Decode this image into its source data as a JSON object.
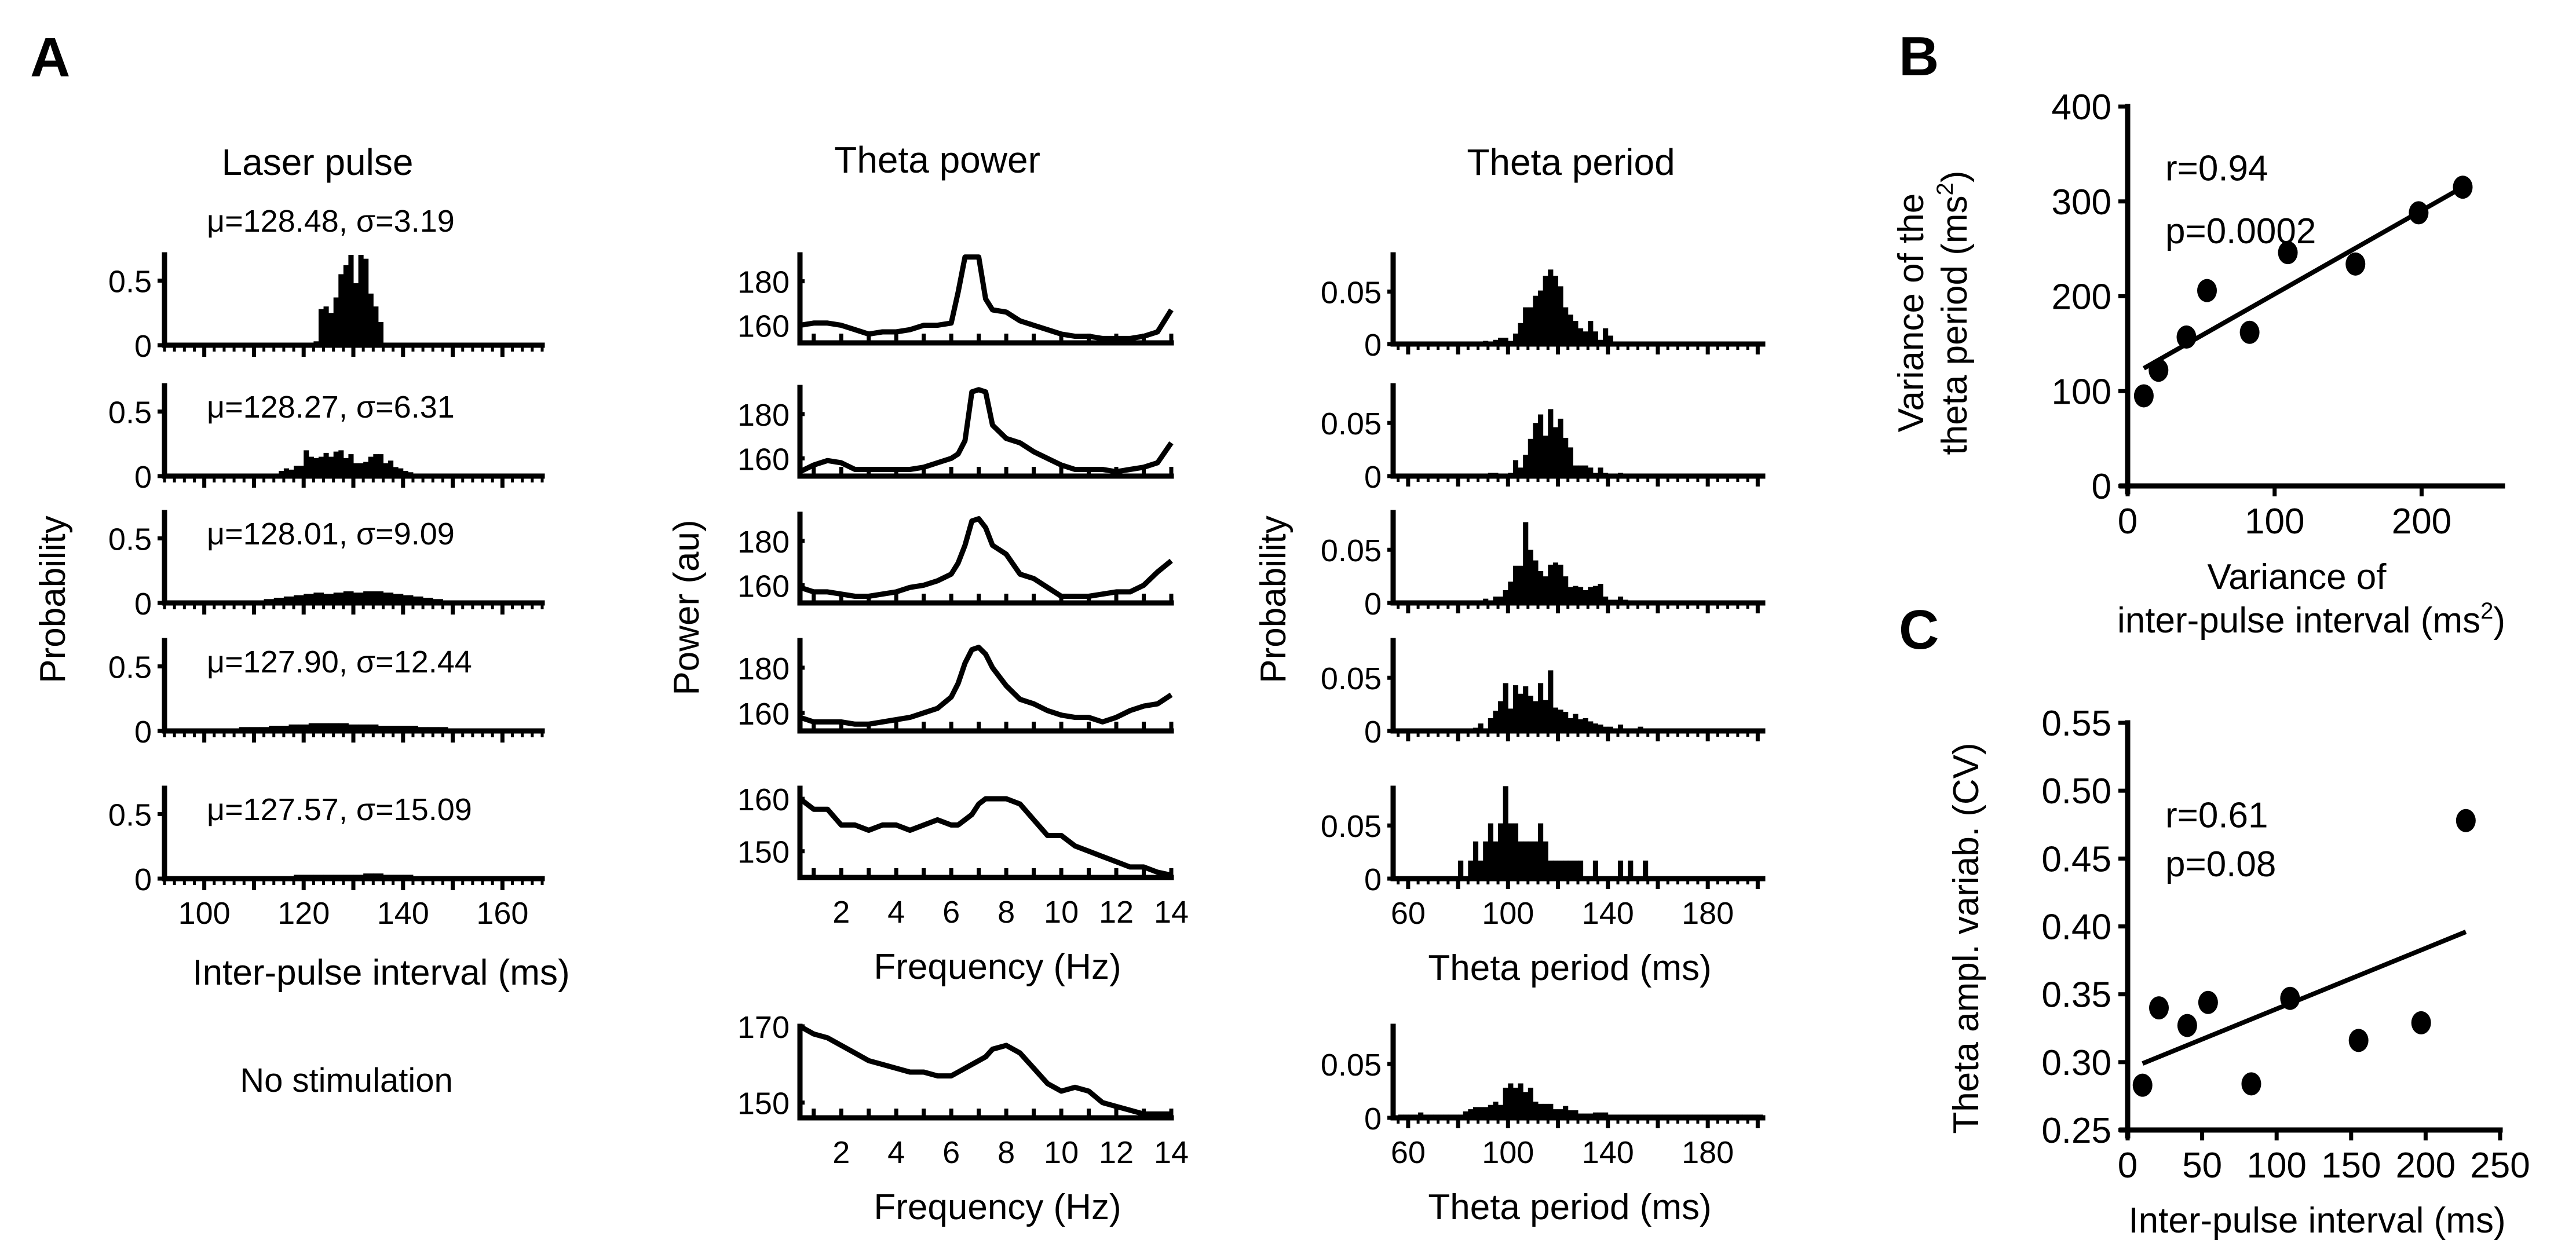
{
  "panel_letters": {
    "a": "A",
    "b": "B",
    "c": "C"
  },
  "column_titles": {
    "laser": "Laser pulse",
    "power": "Theta power",
    "period": "Theta period"
  },
  "no_stim_label": "No stimulation",
  "chart_data": [
    {
      "id": "laser_pulse",
      "type": "bar",
      "title": "Laser pulse",
      "xlabel": "Inter-pulse interval (ms)",
      "ylabel": "Probability",
      "xlim": [
        92,
        168
      ],
      "ylim": [
        0,
        0.7
      ],
      "xticks": [
        100,
        120,
        140,
        160
      ],
      "yticks": [
        0,
        0.5
      ],
      "ytick_labels": [
        "0",
        "0.5"
      ],
      "panels": [
        {
          "annotation": "μ=128.48, σ=3.19",
          "bin_start": 122,
          "bin_width": 1,
          "values": [
            0.03,
            0.28,
            0.3,
            0.25,
            0.37,
            0.55,
            0.62,
            0.7,
            0.48,
            0.7,
            0.67,
            0.4,
            0.3,
            0.18,
            0.02
          ]
        },
        {
          "annotation": "μ=128.27, σ=6.31",
          "bin_start": 113,
          "bin_width": 1,
          "values": [
            0.01,
            0.02,
            0.04,
            0.06,
            0.05,
            0.08,
            0.08,
            0.2,
            0.15,
            0.14,
            0.15,
            0.18,
            0.15,
            0.19,
            0.2,
            0.14,
            0.17,
            0.1,
            0.1,
            0.11,
            0.15,
            0.17,
            0.17,
            0.1,
            0.12,
            0.07,
            0.06,
            0.04,
            0.03
          ]
        },
        {
          "annotation": "μ=128.01, σ=9.09",
          "bin_start": 110,
          "bin_width": 2,
          "values": [
            0.02,
            0.03,
            0.04,
            0.05,
            0.06,
            0.07,
            0.08,
            0.07,
            0.08,
            0.09,
            0.08,
            0.09,
            0.09,
            0.08,
            0.07,
            0.06,
            0.05,
            0.04,
            0.03,
            0.02
          ]
        },
        {
          "annotation": "μ=127.90, σ=12.44",
          "bin_start": 103,
          "bin_width": 2,
          "values": [
            0.02,
            0.02,
            0.03,
            0.03,
            0.03,
            0.04,
            0.04,
            0.05,
            0.05,
            0.06,
            0.06,
            0.06,
            0.06,
            0.05,
            0.05,
            0.05,
            0.04,
            0.04,
            0.04,
            0.04,
            0.03,
            0.03,
            0.03,
            0.02,
            0.02,
            0.02
          ]
        },
        {
          "annotation": "μ=127.57, σ=15.09",
          "bin_start": 98,
          "bin_width": 2,
          "values": [
            0.02,
            0.01,
            0.01,
            0.01,
            0.01,
            0.02,
            0.02,
            0.02,
            0.02,
            0.02,
            0.03,
            0.03,
            0.03,
            0.03,
            0.03,
            0.03,
            0.03,
            0.04,
            0.04,
            0.03,
            0.03,
            0.03,
            0.02,
            0.02,
            0.02,
            0.02,
            0.02,
            0.01,
            0.01,
            0.01,
            0.01,
            0.01
          ]
        }
      ]
    },
    {
      "id": "theta_power",
      "type": "line",
      "title": "Theta power",
      "xlabel": "Frequency (Hz)",
      "ylabel": "Power (au)",
      "xlim": [
        0.5,
        14
      ],
      "xticks": [
        2,
        4,
        6,
        8,
        10,
        12,
        14
      ],
      "x": [
        0.5,
        1,
        1.5,
        2,
        2.5,
        3,
        3.5,
        4,
        4.5,
        5,
        5.5,
        6,
        6.25,
        6.5,
        6.75,
        7,
        7.25,
        7.5,
        8,
        8.5,
        9,
        9.5,
        10,
        10.5,
        11,
        11.5,
        12,
        12.5,
        13,
        13.5,
        14
      ],
      "panels": [
        {
          "ylim": [
            152,
            192
          ],
          "yticks": [
            160,
            180
          ],
          "values": [
            160,
            161,
            161,
            160,
            158,
            156,
            157,
            157,
            158,
            160,
            160,
            161,
            175,
            191,
            191,
            191,
            172,
            167,
            166,
            162,
            160,
            158,
            156,
            155,
            155,
            154,
            154,
            154,
            155,
            157,
            167
          ]
        },
        {
          "ylim": [
            152,
            192
          ],
          "yticks": [
            160,
            180
          ],
          "values": [
            154,
            157,
            159,
            158,
            155,
            155,
            155,
            155,
            155,
            156,
            158,
            160,
            162,
            168,
            190,
            191,
            190,
            175,
            169,
            167,
            163,
            160,
            157,
            155,
            155,
            155,
            154,
            155,
            156,
            158,
            167
          ]
        },
        {
          "ylim": [
            152,
            192
          ],
          "yticks": [
            160,
            180
          ],
          "values": [
            159,
            157,
            157,
            156,
            155,
            155,
            156,
            157,
            159,
            160,
            162,
            165,
            170,
            178,
            189,
            190,
            186,
            178,
            174,
            165,
            163,
            159,
            155,
            155,
            155,
            156,
            157,
            157,
            160,
            166,
            171
          ]
        },
        {
          "ylim": [
            152,
            192
          ],
          "yticks": [
            160,
            180
          ],
          "values": [
            158,
            156,
            156,
            156,
            155,
            155,
            156,
            157,
            158,
            160,
            162,
            167,
            173,
            182,
            188,
            189,
            186,
            180,
            172,
            166,
            164,
            161,
            159,
            158,
            158,
            156,
            158,
            161,
            163,
            164,
            168
          ]
        },
        {
          "ylim": [
            145,
            162
          ],
          "yticks": [
            150,
            160
          ],
          "values": [
            160,
            158,
            158,
            155,
            155,
            154,
            155,
            155,
            154,
            155,
            156,
            155,
            155,
            156,
            157,
            159,
            160,
            160,
            160,
            159,
            156,
            153,
            153,
            151,
            150,
            149,
            148,
            147,
            147,
            146,
            145
          ]
        },
        {
          "ylim": [
            146,
            170
          ],
          "yticks": [
            150,
            170
          ],
          "values": [
            170,
            168,
            167,
            165,
            163,
            161,
            160,
            159,
            158,
            158,
            157,
            157,
            158,
            159,
            160,
            161,
            162,
            164,
            165,
            163,
            159,
            155,
            153,
            154,
            153,
            150,
            149,
            148,
            147,
            147,
            147
          ]
        }
      ]
    },
    {
      "id": "theta_period",
      "type": "bar",
      "title": "Theta period",
      "xlabel": "Theta period (ms)",
      "ylabel": "Probability",
      "xlim": [
        54,
        202
      ],
      "ylim": [
        0,
        0.085
      ],
      "xticks": [
        60,
        100,
        140,
        180
      ],
      "yticks": [
        0,
        0.05
      ],
      "ytick_labels": [
        "0",
        "0.05"
      ],
      "panels": [
        {
          "bin_start": 90,
          "bin_width": 2,
          "values": [
            0.003,
            0,
            0.004,
            0.006,
            0.006,
            0.003,
            0.01,
            0.02,
            0.035,
            0.035,
            0.046,
            0.051,
            0.065,
            0.071,
            0.065,
            0.055,
            0.035,
            0.028,
            0.022,
            0.015,
            0.012,
            0.022,
            0.012,
            0.004,
            0.015,
            0.008,
            0,
            0.002,
            0.002,
            0.002,
            0.002,
            0.002,
            0,
            0.002,
            0.002
          ]
        },
        {
          "bin_start": 66,
          "bin_width": 2,
          "values": [
            0.002,
            0,
            0,
            0,
            0.002,
            0.002,
            0,
            0,
            0,
            0,
            0,
            0.002,
            0,
            0.003,
            0.003,
            0.002,
            0.002,
            0.003,
            0.015,
            0.008,
            0.02,
            0.035,
            0.05,
            0.058,
            0.038,
            0.063,
            0.046,
            0.054,
            0.036,
            0.027,
            0.01,
            0.01,
            0.01,
            0.008,
            0.003,
            0.008,
            0.003,
            0.002,
            0.002,
            0.003,
            0.002,
            0.002,
            0,
            0,
            0.002
          ]
        },
        {
          "bin_start": 84,
          "bin_width": 2,
          "values": [
            0.002,
            0,
            0.002,
            0.004,
            0.002,
            0.006,
            0.006,
            0.012,
            0.02,
            0.035,
            0.035,
            0.076,
            0.05,
            0.04,
            0.03,
            0.025,
            0.036,
            0.038,
            0.036,
            0.025,
            0.015,
            0.016,
            0.015,
            0.012,
            0.015,
            0.016,
            0.018,
            0.006,
            0.003,
            0.003,
            0.006,
            0.003,
            0.002,
            0.002,
            0.002,
            0.002,
            0.002
          ]
        },
        {
          "bin_start": 66,
          "bin_width": 2,
          "values": [
            0.002,
            0,
            0,
            0,
            0,
            0,
            0.002,
            0,
            0,
            0,
            0.003,
            0.007,
            0,
            0.012,
            0.019,
            0.028,
            0.045,
            0.021,
            0.043,
            0.035,
            0.042,
            0.033,
            0.028,
            0.045,
            0.029,
            0.057,
            0.022,
            0.02,
            0.018,
            0.012,
            0.016,
            0.011,
            0.012,
            0.009,
            0.007,
            0.006,
            0.004,
            0.004,
            0.002,
            0.006,
            0.002,
            0,
            0.002,
            0.004
          ]
        },
        {
          "bin_start": 80,
          "bin_width": 2,
          "values": [
            0.017,
            0,
            0.017,
            0.035,
            0.017,
            0.035,
            0.052,
            0.035,
            0.052,
            0.087,
            0.052,
            0.052,
            0.035,
            0.035,
            0.035,
            0.035,
            0.052,
            0.035,
            0.017,
            0.017,
            0.017,
            0.017,
            0.017,
            0.017,
            0.017,
            0,
            0,
            0.017,
            0,
            0,
            0,
            0,
            0.017,
            0,
            0.017,
            0,
            0,
            0.017
          ]
        },
        {
          "bin_start": 56,
          "bin_width": 2,
          "values": [
            0.003,
            0.003,
            0.003,
            0.003,
            0.005,
            0.003,
            0.003,
            0.003,
            0.003,
            0.003,
            0.003,
            0.003,
            0.003,
            0.006,
            0.008,
            0.01,
            0.01,
            0.01,
            0.012,
            0.015,
            0.012,
            0.028,
            0.032,
            0.028,
            0.032,
            0.024,
            0.028,
            0.015,
            0.013,
            0.013,
            0.013,
            0.008,
            0.008,
            0.011,
            0.007,
            0.007,
            0.004,
            0.004,
            0.004,
            0.005,
            0.005,
            0.005,
            0.003,
            0.003,
            0.003,
            0.003,
            0.003,
            0.003,
            0.003,
            0.003,
            0.003,
            0.003,
            0.003,
            0.003,
            0.003,
            0.003,
            0.003,
            0.003,
            0.003,
            0.003,
            0.003,
            0.003,
            0.003,
            0.003,
            0.003,
            0.003,
            0.003,
            0.003,
            0.003,
            0.003,
            0.003,
            0.003,
            0.003,
            0.003
          ]
        }
      ]
    },
    {
      "id": "B",
      "type": "scatter",
      "xlabel_line1": "Variance of",
      "xlabel_line2": "inter-pulse interval (ms",
      "xlabel_sup": "2",
      "xlabel_end": ")",
      "ylabel_line1": "Variance of the",
      "ylabel_line2": "theta period (ms",
      "ylabel_sup": "2",
      "ylabel_end": ")",
      "xlim": [
        0,
        255
      ],
      "ylim": [
        0,
        400
      ],
      "xticks": [
        0,
        100,
        200
      ],
      "yticks": [
        0,
        100,
        200,
        300,
        400
      ],
      "annotation": [
        "r=0.94",
        "p=0.0002"
      ],
      "x": [
        11,
        21,
        40,
        54,
        83,
        109,
        155,
        198,
        228
      ],
      "y": [
        95,
        122,
        157,
        206,
        162,
        246,
        234,
        288,
        315
      ],
      "fit": {
        "x": [
          11,
          228
        ],
        "y": [
          124,
          315
        ]
      }
    },
    {
      "id": "C",
      "type": "scatter",
      "xlabel": "Inter-pulse interval (ms)",
      "ylabel": "Theta ampl. variab. (CV)",
      "xlim": [
        0,
        250
      ],
      "ylim": [
        0.25,
        0.55
      ],
      "xticks": [
        0,
        50,
        100,
        150,
        200,
        250
      ],
      "yticks": [
        0.25,
        0.3,
        0.35,
        0.4,
        0.45,
        0.5,
        0.55
      ],
      "ytick_labels": [
        "0.25",
        "0.30",
        "0.35",
        "0.40",
        "0.45",
        "0.50",
        "0.55"
      ],
      "annotation": [
        "r=0.61",
        "p=0.08"
      ],
      "x": [
        10,
        21,
        40,
        54,
        83,
        109,
        155,
        197,
        227
      ],
      "y": [
        0.283,
        0.34,
        0.327,
        0.344,
        0.284,
        0.347,
        0.316,
        0.329,
        0.478
      ],
      "fit": {
        "x": [
          10,
          227
        ],
        "y": [
          0.299,
          0.396
        ]
      }
    }
  ]
}
